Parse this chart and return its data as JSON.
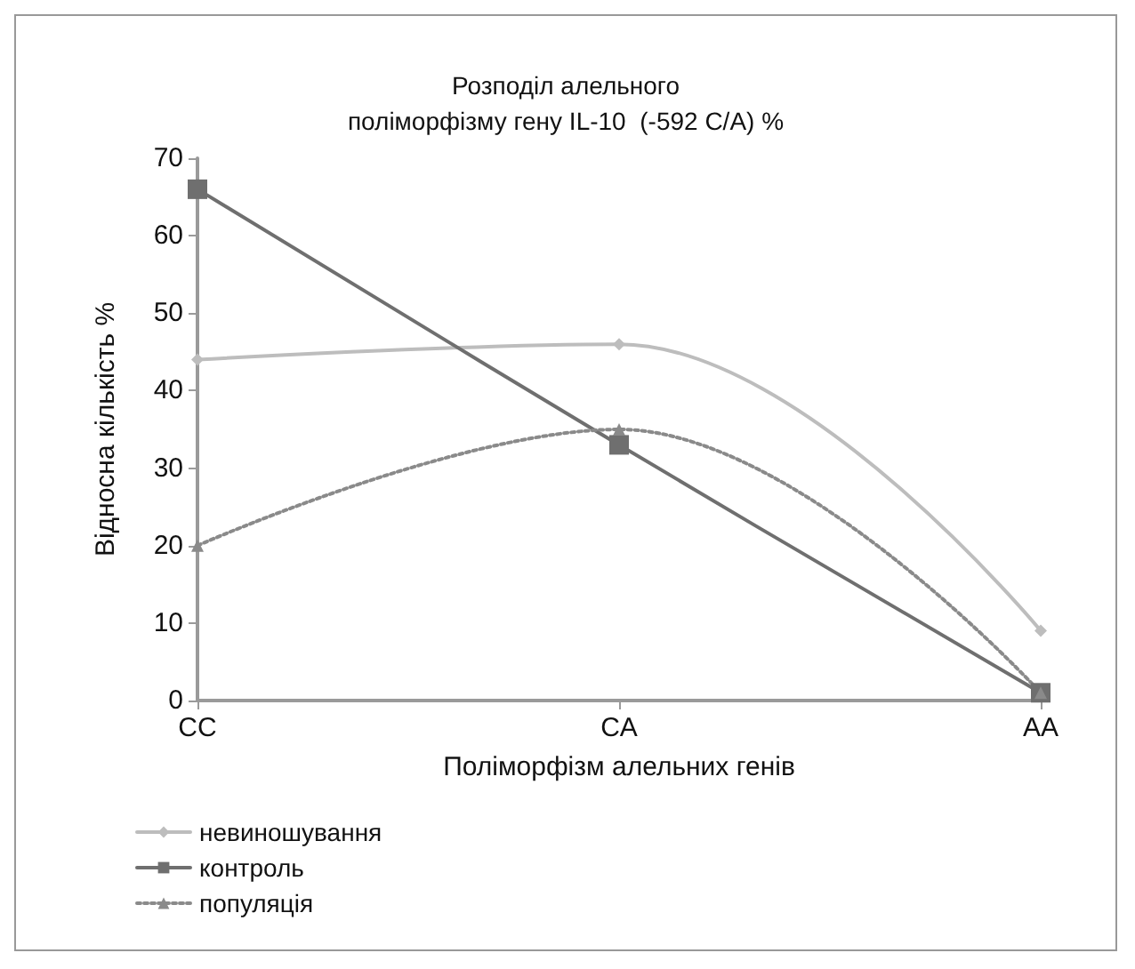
{
  "chart_data": {
    "type": "line",
    "title": "Розподіл алельного\nполіморфізму гену IL-10  (-592 C/A) %",
    "xlabel": "Поліморфізм алельних генів",
    "ylabel": "Відносна кількість %",
    "categories": [
      "CC",
      "CA",
      "AA"
    ],
    "series": [
      {
        "name": "невиношування",
        "color": "#bdbdbd",
        "values": [
          44,
          46,
          9
        ],
        "marker": "diamond",
        "line_style": "solid"
      },
      {
        "name": "контроль",
        "color": "#6f6f6f",
        "values": [
          66,
          33,
          1
        ],
        "marker": "square",
        "line_style": "solid"
      },
      {
        "name": "популяція",
        "color": "#8a8a8a",
        "values": [
          20,
          35,
          1
        ],
        "marker": "triangle",
        "line_style": "dotted"
      }
    ],
    "ylim": [
      0,
      70
    ],
    "yticks": [
      0,
      10,
      20,
      30,
      40,
      50,
      60,
      70
    ],
    "grid": false,
    "legend": "bottom left"
  }
}
